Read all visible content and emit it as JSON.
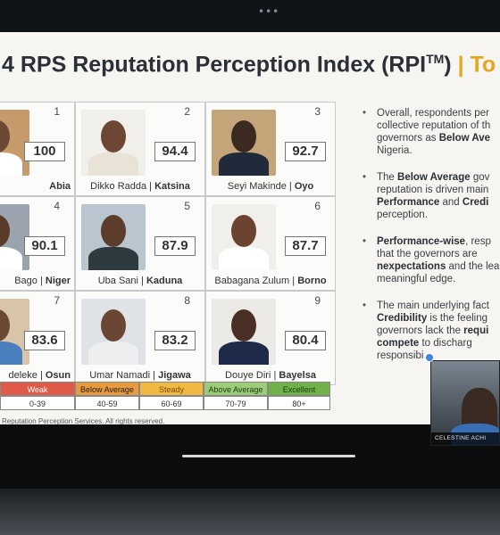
{
  "window": {
    "menu_dots": "•••"
  },
  "slide": {
    "title_main": "4 RPS Reputation Perception Index (RPI",
    "title_sup": "TM",
    "title_close": ")",
    "title_accent": " | To",
    "accent_color": "#e6a520",
    "governors": [
      {
        "rank": "1",
        "score": "100",
        "name": "",
        "state": "Abia",
        "photo_colors": [
          "#c79a6b",
          "#6b4a33",
          "#ffffff"
        ]
      },
      {
        "rank": "2",
        "score": "94.4",
        "name": "Dikko Radda",
        "state": "Katsina",
        "photo_colors": [
          "#f1efe9",
          "#6d4734",
          "#e8e3d6"
        ]
      },
      {
        "rank": "3",
        "score": "92.7",
        "name": "Seyi Makinde",
        "state": "Oyo",
        "photo_colors": [
          "#c4a57a",
          "#3b2a20",
          "#202a3a"
        ]
      },
      {
        "rank": "4",
        "score": "90.1",
        "name": "Bago",
        "state": "Niger",
        "photo_colors": [
          "#9aa3ae",
          "#5a3a28",
          "#ffffff"
        ]
      },
      {
        "rank": "5",
        "score": "87.9",
        "name": "Uba Sani",
        "state": "Kaduna",
        "photo_colors": [
          "#b9c6cf",
          "#5c3c2b",
          "#2f3a3f"
        ]
      },
      {
        "rank": "6",
        "score": "87.7",
        "name": "Babagana Zulum",
        "state": "Borno",
        "photo_colors": [
          "#f0efeb",
          "#6a4430",
          "#ffffff"
        ]
      },
      {
        "rank": "7",
        "score": "83.6",
        "name": "deleke",
        "state": "Osun",
        "photo_colors": [
          "#d8c4a8",
          "#6b4a33",
          "#4a7fbf"
        ]
      },
      {
        "rank": "8",
        "score": "83.2",
        "name": "Umar Namadi",
        "state": "Jigawa",
        "photo_colors": [
          "#dfe3e7",
          "#6a4634",
          "#eeeeee"
        ]
      },
      {
        "rank": "9",
        "score": "80.4",
        "name": "Douye Diri",
        "state": "Bayelsa",
        "photo_colors": [
          "#eceae6",
          "#4a3024",
          "#1d2a4a"
        ]
      }
    ],
    "legend": [
      {
        "label": "Weak",
        "range": "0-39",
        "color": "#e05a4a",
        "text": "#ffffff"
      },
      {
        "label": "Below Average",
        "range": "40-59",
        "color": "#e99a3c",
        "text": "#222222"
      },
      {
        "label": "Steady",
        "range": "60-69",
        "color": "#f1b842",
        "text": "#7a4a10"
      },
      {
        "label": "Above Average",
        "range": "70-79",
        "color": "#9ccc78",
        "text": "#1e3a14"
      },
      {
        "label": "Excellent",
        "range": "80+",
        "color": "#6fb24a",
        "text": "#1c3b0f"
      }
    ],
    "copyright": "Reputation Perception Services. All rights reserved.",
    "bullets": [
      {
        "pre": "Overall, respondents per collective reputation of th governors as ",
        "bold": "Below Ave",
        "post": " Nigeria."
      },
      {
        "pre": "The ",
        "bold": "Below Average",
        "post": " gov reputation is driven main ",
        "bold2": "Performance",
        "mid": " and ",
        "bold3": "Credi",
        "tail": " perception."
      },
      {
        "pre": "",
        "bold": "Performance-wise",
        "post": ", resp that the governors are ",
        "bold2": "n",
        "mid": "",
        "bold3": "expectations",
        "tail": " and the lea meaningful edge."
      },
      {
        "pre": "The main underlying fact ",
        "bold": "Credibility",
        "post": " is the feeling governors lack the ",
        "bold2": "requi",
        "mid": " ",
        "bold3": "compete",
        "tail": " to discharg responsibi"
      }
    ]
  },
  "video": {
    "participant_name": "CELESTINE ACHI"
  }
}
